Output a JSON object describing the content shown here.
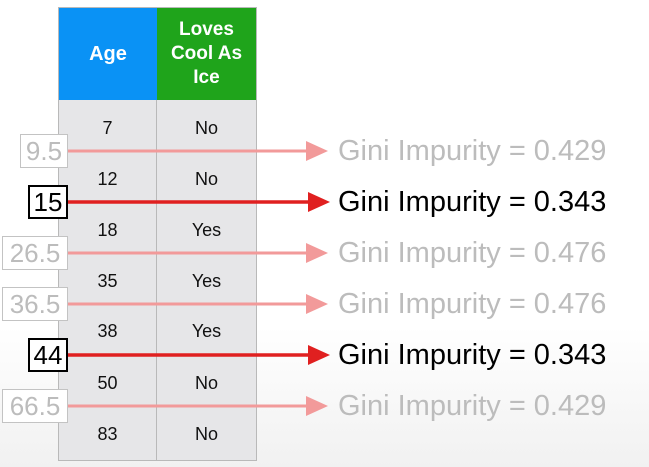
{
  "table": {
    "headers": {
      "age": "Age",
      "loves": "Loves\nCool As\nIce"
    },
    "rows": [
      {
        "age": "7",
        "loves": "No"
      },
      {
        "age": "12",
        "loves": "No"
      },
      {
        "age": "18",
        "loves": "Yes"
      },
      {
        "age": "35",
        "loves": "Yes"
      },
      {
        "age": "38",
        "loves": "Yes"
      },
      {
        "age": "50",
        "loves": "No"
      },
      {
        "age": "83",
        "loves": "No"
      }
    ]
  },
  "splits": [
    {
      "threshold": "9.5",
      "gini": "Gini Impurity = 0.429",
      "best": false
    },
    {
      "threshold": "15",
      "gini": "Gini Impurity = 0.343",
      "best": true
    },
    {
      "threshold": "26.5",
      "gini": "Gini Impurity = 0.476",
      "best": false
    },
    {
      "threshold": "36.5",
      "gini": "Gini Impurity = 0.476",
      "best": false
    },
    {
      "threshold": "44",
      "gini": "Gini Impurity = 0.343",
      "best": true
    },
    {
      "threshold": "66.5",
      "gini": "Gini Impurity = 0.429",
      "best": false
    }
  ],
  "colors": {
    "age_header": "#0a92f5",
    "loves_header": "#1fa41b",
    "best_arrow": "#e02020",
    "faded_arrow": "#f29a9a",
    "faded_text": "#bcbcbc"
  }
}
